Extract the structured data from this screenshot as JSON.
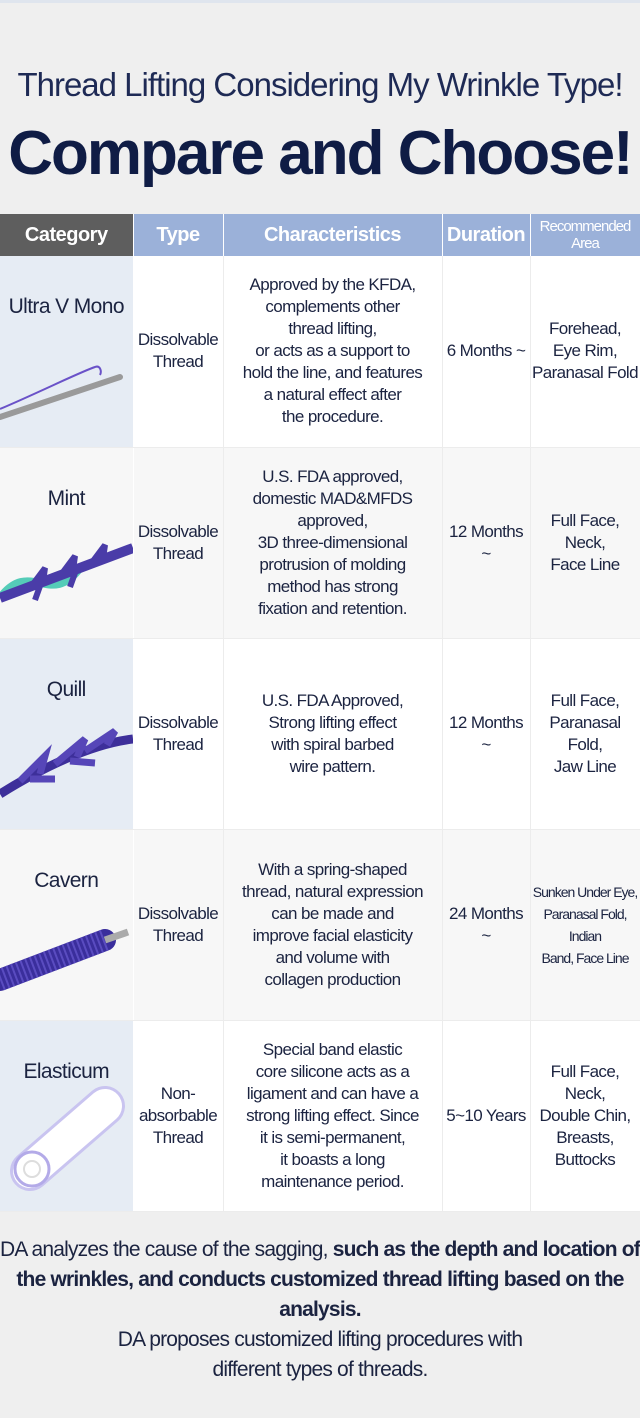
{
  "header": {
    "subtitle": "Thread Lifting Considering My Wrinkle Type!",
    "title": "Compare and Choose!"
  },
  "table": {
    "columns": [
      "Category",
      "Type",
      "Characteristics",
      "Duration",
      "Recommended Area"
    ],
    "rows": [
      {
        "category": "Ultra V Mono",
        "image": "ultra-v-mono-thread-image",
        "type": [
          "Dissolvable",
          "Thread"
        ],
        "characteristics": [
          "Approved by the KFDA,",
          "complements other",
          "thread lifting,",
          "or acts as a support to",
          "hold the line, and features",
          "a natural effect after",
          "the procedure."
        ],
        "duration": "6 Months ~",
        "area": [
          "Forehead,",
          "Eye Rim,",
          "Paranasal Fold"
        ]
      },
      {
        "category": "Mint",
        "image": "mint-thread-image",
        "type": [
          "Dissolvable",
          "Thread"
        ],
        "characteristics": [
          "U.S. FDA approved,",
          "domestic MAD&MFDS",
          "approved,",
          "3D three-dimensional",
          "protrusion of molding",
          "method has strong",
          "fixation and retention."
        ],
        "duration": "12 Months ~",
        "area": [
          "Full Face,",
          "Neck,",
          "Face Line"
        ]
      },
      {
        "category": "Quill",
        "image": "quill-thread-image",
        "type": [
          "Dissolvable",
          "Thread"
        ],
        "characteristics": [
          "U.S. FDA Approved,",
          "Strong lifting effect",
          "with spiral barbed",
          "wire pattern."
        ],
        "duration": "12 Months ~",
        "area": [
          "Full Face,",
          "Paranasal Fold,",
          "Jaw Line"
        ]
      },
      {
        "category": "Cavern",
        "image": "cavern-thread-image",
        "type": [
          "Dissolvable",
          "Thread"
        ],
        "characteristics": [
          "With a spring-shaped",
          "thread, natural expression",
          "can be made and",
          "improve facial elasticity",
          "and volume with",
          "collagen production"
        ],
        "duration": "24 Months ~",
        "area": [
          "Sunken Under Eye,",
          "Paranasal Fold,",
          "Indian",
          "Band, Face Line"
        ]
      },
      {
        "category": "Elasticum",
        "image": "elasticum-thread-image",
        "type": [
          "Non-",
          "absorbable",
          "Thread"
        ],
        "characteristics": [
          "Special band elastic",
          "core silicone acts as a",
          "ligament and can have a",
          "strong lifting effect. Since",
          "it is semi-permanent,",
          "it boasts a long",
          "maintenance period."
        ],
        "duration": "5~10 Years",
        "area": [
          "Full Face,",
          "Neck,",
          "Double Chin,",
          "Breasts,",
          "Buttocks"
        ]
      }
    ]
  },
  "footer": {
    "p1_normal": "DA analyzes the cause of the sagging,",
    "p1_bold": " such as the depth and location of the wrinkles, and conducts customized thread lifting based on the analysis.",
    "p2": "DA proposes customized lifting procedures with different types of threads."
  },
  "colors": {
    "title": "#0f1c45",
    "header_gray": "#5e5e5e",
    "header_blue": "#9bb1d9",
    "category_bg": "#e6ecf4",
    "thread_purple": "#4a3ca8"
  }
}
